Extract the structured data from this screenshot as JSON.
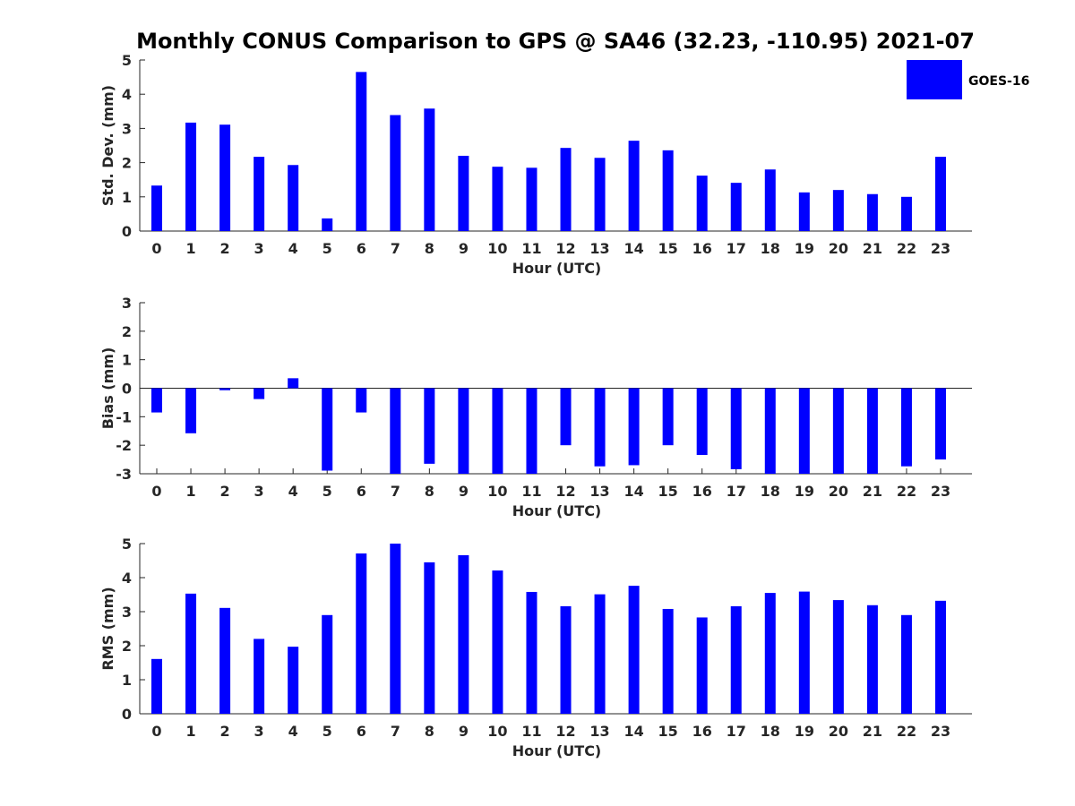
{
  "title": "Monthly CONUS Comparison to GPS @ SA46 (32.23, -110.95) 2021-07",
  "legend": {
    "label": "GOES-16",
    "color": "#0000ff",
    "placement": "top-right"
  },
  "chart_data": [
    {
      "type": "bar",
      "categories": [
        "0",
        "1",
        "2",
        "3",
        "4",
        "5",
        "6",
        "7",
        "8",
        "9",
        "10",
        "11",
        "12",
        "13",
        "14",
        "15",
        "16",
        "17",
        "18",
        "19",
        "20",
        "21",
        "22",
        "23"
      ],
      "series": [
        {
          "name": "GOES-16",
          "values": [
            1.33,
            3.17,
            3.11,
            2.17,
            1.93,
            0.37,
            4.65,
            3.39,
            3.58,
            2.2,
            1.88,
            1.85,
            2.43,
            2.14,
            2.64,
            2.36,
            1.62,
            1.41,
            1.8,
            1.13,
            1.2,
            1.08,
            1.0,
            2.17
          ]
        }
      ],
      "xlabel": "Hour (UTC)",
      "ylabel": "Std. Dev. (mm)",
      "ylim": [
        0,
        5
      ],
      "yticks": [
        "0",
        "1",
        "2",
        "3",
        "4",
        "5"
      ],
      "grid": false
    },
    {
      "type": "bar",
      "categories": [
        "0",
        "1",
        "2",
        "3",
        "4",
        "5",
        "6",
        "7",
        "8",
        "9",
        "10",
        "11",
        "12",
        "13",
        "14",
        "15",
        "16",
        "17",
        "18",
        "19",
        "20",
        "21",
        "22",
        "23"
      ],
      "series": [
        {
          "name": "GOES-16",
          "values": [
            -0.85,
            -1.58,
            -0.07,
            -0.38,
            0.35,
            -2.89,
            -0.85,
            -3.0,
            -2.65,
            -3.0,
            -3.0,
            -3.0,
            -2.0,
            -2.74,
            -2.7,
            -2.0,
            -2.34,
            -2.84,
            -3.0,
            -3.0,
            -3.0,
            -3.0,
            -2.74,
            -2.5
          ]
        }
      ],
      "xlabel": "Hour (UTC)",
      "ylabel": "Bias (mm)",
      "ylim": [
        -3,
        3
      ],
      "yticks": [
        "-3",
        "-2",
        "-1",
        "0",
        "1",
        "2",
        "3"
      ],
      "grid": false,
      "zero_line": true
    },
    {
      "type": "bar",
      "categories": [
        "0",
        "1",
        "2",
        "3",
        "4",
        "5",
        "6",
        "7",
        "8",
        "9",
        "10",
        "11",
        "12",
        "13",
        "14",
        "15",
        "16",
        "17",
        "18",
        "19",
        "20",
        "21",
        "22",
        "23"
      ],
      "series": [
        {
          "name": "GOES-16",
          "values": [
            1.61,
            3.53,
            3.11,
            2.2,
            1.97,
            2.9,
            4.71,
            5.0,
            4.45,
            4.66,
            4.21,
            3.58,
            3.16,
            3.51,
            3.76,
            3.08,
            2.83,
            3.16,
            3.55,
            3.59,
            3.34,
            3.19,
            2.9,
            3.32
          ]
        }
      ],
      "xlabel": "Hour (UTC)",
      "ylabel": "RMS (mm)",
      "ylim": [
        0,
        5
      ],
      "yticks": [
        "0",
        "1",
        "2",
        "3",
        "4",
        "5"
      ],
      "grid": false
    }
  ]
}
